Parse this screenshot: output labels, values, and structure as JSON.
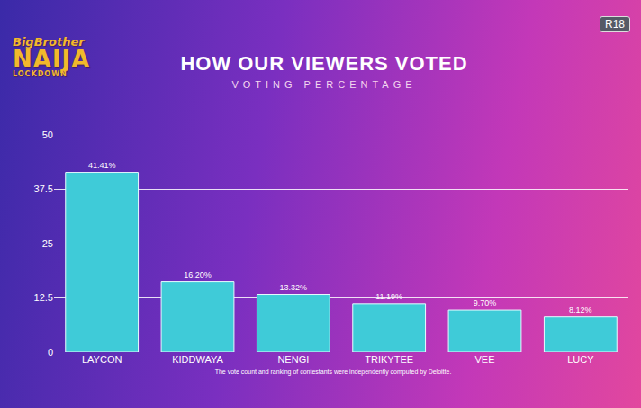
{
  "chart_data": {
    "type": "bar",
    "title": "HOW OUR VIEWERS VOTED",
    "subtitle": "VOTING PERCENTAGE",
    "logo": [
      "BigBrother",
      "NAIJA",
      "LOCKDOWN"
    ],
    "badge": "R18",
    "footnote": "The vote count and ranking of contestants were independently computed by Deloitte.",
    "categories": [
      "LAYCON",
      "KIDDWAYA",
      "NENGI",
      "TRIKYTEE",
      "VEE",
      "LUCY"
    ],
    "values": [
      41.41,
      16.2,
      13.32,
      11.19,
      9.7,
      8.12
    ],
    "value_labels": [
      "41.41%",
      "16.20%",
      "13.32%",
      "11.19%",
      "9.70%",
      "8.12%"
    ],
    "color": "#3fcbd8",
    "ylim": [
      0,
      50
    ],
    "yticks": [
      0,
      12.5,
      25,
      37.5,
      50
    ],
    "grid": true,
    "data_labels": true
  }
}
